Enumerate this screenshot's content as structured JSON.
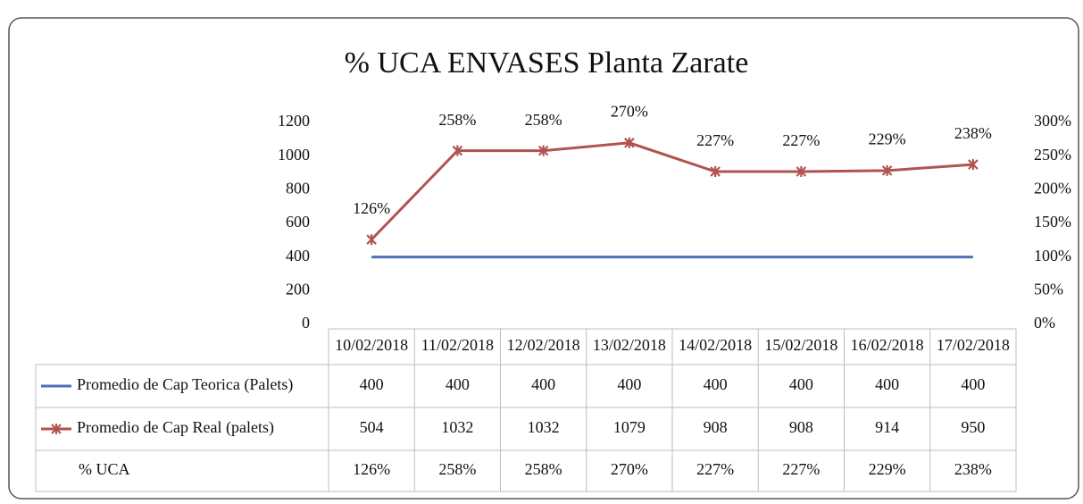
{
  "chart_data": {
    "type": "line",
    "title": "% UCA ENVASES  Planta Zarate",
    "categories": [
      "10/02/2018",
      "11/02/2018",
      "12/02/2018",
      "13/02/2018",
      "14/02/2018",
      "15/02/2018",
      "16/02/2018",
      "17/02/2018"
    ],
    "series": [
      {
        "name": "Promedio de Cap Teorica (Palets)",
        "color": "#4f6fb5",
        "values": [
          400,
          400,
          400,
          400,
          400,
          400,
          400,
          400
        ]
      },
      {
        "name": "Promedio de Cap Real (palets)",
        "color": "#b05451",
        "values": [
          504,
          1032,
          1032,
          1079,
          908,
          908,
          914,
          950
        ]
      },
      {
        "name": "% UCA",
        "axis": "y2",
        "values": [
          126,
          258,
          258,
          270,
          227,
          227,
          229,
          238
        ],
        "value_labels": [
          "126%",
          "258%",
          "258%",
          "270%",
          "227%",
          "227%",
          "229%",
          "238%"
        ]
      }
    ],
    "ylim": [
      0,
      1200
    ],
    "yticks": [
      0,
      200,
      400,
      600,
      800,
      1000,
      1200
    ],
    "y2lim": [
      0,
      300
    ],
    "y2ticks": [
      {
        "value": 0,
        "label": "0%"
      },
      {
        "value": 50,
        "label": "50%"
      },
      {
        "value": 100,
        "label": "100%"
      },
      {
        "value": 150,
        "label": "150%"
      },
      {
        "value": 200,
        "label": "200%"
      },
      {
        "value": 250,
        "label": "250%"
      },
      {
        "value": 300,
        "label": "300%"
      }
    ],
    "data_table": true
  }
}
